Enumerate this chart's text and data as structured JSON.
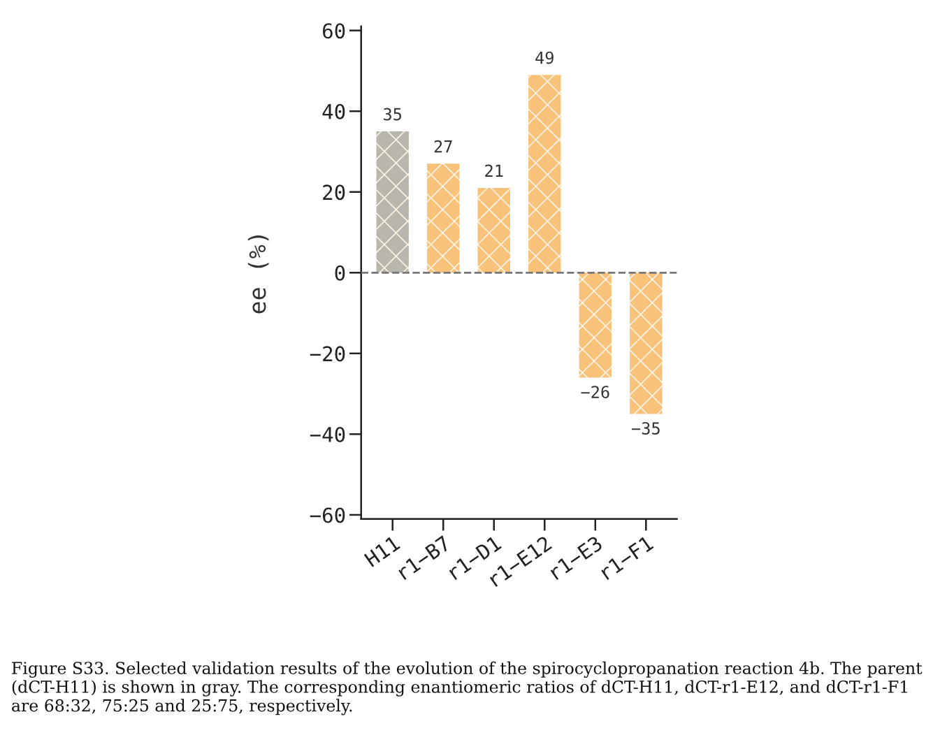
{
  "chart_data": {
    "type": "bar",
    "ylabel": "ee (%)",
    "categories": [
      "H11",
      "r1−B7",
      "r1−D1",
      "r1−E12",
      "r1−E3",
      "r1−F1"
    ],
    "values": [
      35,
      27,
      21,
      49,
      -26,
      -35
    ],
    "colors": [
      "#b8b6ad",
      "#f8c27a",
      "#f8c27a",
      "#f8c27a",
      "#f8c27a",
      "#f8c27a"
    ],
    "data_labels": true,
    "ylim": [
      -61,
      61
    ],
    "yticks": [
      {
        "value": -60,
        "label": "−60"
      },
      {
        "value": -40,
        "label": "−40"
      },
      {
        "value": -20,
        "label": "−20"
      },
      0,
      20,
      40,
      60
    ],
    "ref_lines": [
      {
        "axis": "y",
        "value": 0,
        "color": "#777777",
        "line_style": "dashed"
      }
    ],
    "grid": false,
    "legend": false,
    "annotations": [
      "Figure S33. Selected validation results of the evolution of the spirocyclopropanation reaction 4b. The parent (dCT-H11) is shown in gray. The corresponding enantiomeric ratios of dCT-H11, dCT-r1-E12, and dCT-r1-F1 are 68:32, 75:25 and 25:75, respectively."
    ]
  }
}
